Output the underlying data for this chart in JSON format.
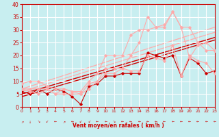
{
  "xlabel": "Vent moyen/en rafales ( km/h )",
  "xlim": [
    0,
    23
  ],
  "ylim": [
    0,
    40
  ],
  "yticks": [
    0,
    5,
    10,
    15,
    20,
    25,
    30,
    35,
    40
  ],
  "xticks": [
    0,
    1,
    2,
    3,
    4,
    5,
    6,
    7,
    8,
    9,
    10,
    11,
    12,
    13,
    14,
    15,
    16,
    17,
    18,
    19,
    20,
    21,
    22,
    23
  ],
  "bg_color": "#c8eef0",
  "color_dark": "#cc0000",
  "color_light": "#ffaaaa",
  "straight_lines": [
    {
      "x": [
        0,
        23
      ],
      "y": [
        5,
        27
      ],
      "color": "#ffaaaa",
      "lw": 0.9
    },
    {
      "x": [
        0,
        23
      ],
      "y": [
        6,
        29
      ],
      "color": "#ffaaaa",
      "lw": 0.9
    },
    {
      "x": [
        0,
        23
      ],
      "y": [
        7,
        31
      ],
      "color": "#ffaaaa",
      "lw": 0.9
    },
    {
      "x": [
        0,
        23
      ],
      "y": [
        4,
        26
      ],
      "color": "#cc0000",
      "lw": 1.0
    },
    {
      "x": [
        0,
        23
      ],
      "y": [
        5,
        27
      ],
      "color": "#cc0000",
      "lw": 1.0
    }
  ],
  "series": [
    {
      "y": [
        6,
        5,
        7,
        5,
        7,
        6,
        4,
        1,
        8,
        9,
        12,
        12,
        13,
        13,
        13,
        21,
        20,
        19,
        20,
        12,
        19,
        17,
        13,
        14
      ],
      "color": "#cc0000"
    },
    {
      "y": [
        7,
        6,
        5,
        7,
        5,
        7,
        6,
        5,
        9,
        10,
        13,
        13,
        15,
        14,
        14,
        20,
        19,
        18,
        24,
        12,
        20,
        18,
        17,
        13
      ],
      "color": "#ffaaaa"
    },
    {
      "y": [
        9,
        10,
        10,
        8,
        7,
        7,
        6,
        6,
        10,
        13,
        20,
        20,
        20,
        28,
        30,
        30,
        31,
        32,
        37,
        31,
        31,
        25,
        22,
        22
      ],
      "color": "#ffaaaa"
    },
    {
      "y": [
        7,
        7,
        7,
        7,
        5,
        5,
        5,
        5,
        7,
        10,
        15,
        15,
        15,
        20,
        25,
        35,
        31,
        31,
        37,
        31,
        19,
        24,
        25,
        22
      ],
      "color": "#ffaaaa"
    }
  ]
}
